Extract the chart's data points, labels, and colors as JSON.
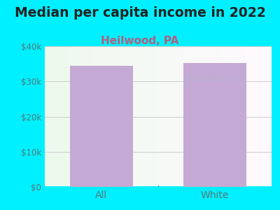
{
  "title": "Median per capita income in 2022",
  "subtitle": "Heilwood, PA",
  "categories": [
    "All",
    "White"
  ],
  "values": [
    34500,
    35200
  ],
  "bar_color": "#c4aad4",
  "title_fontsize": 13.5,
  "title_color": "#222222",
  "subtitle_fontsize": 11,
  "subtitle_color": "#b06080",
  "tick_label_color": "#557777",
  "background_color": "#00f0ff",
  "ylim": [
    0,
    40000
  ],
  "yticks": [
    0,
    10000,
    20000,
    30000,
    40000
  ],
  "ytick_labels": [
    "$0",
    "$10k",
    "$20k",
    "$30k",
    "$40k"
  ],
  "grid_color": "#cccccc",
  "watermark": "City-Data.com"
}
